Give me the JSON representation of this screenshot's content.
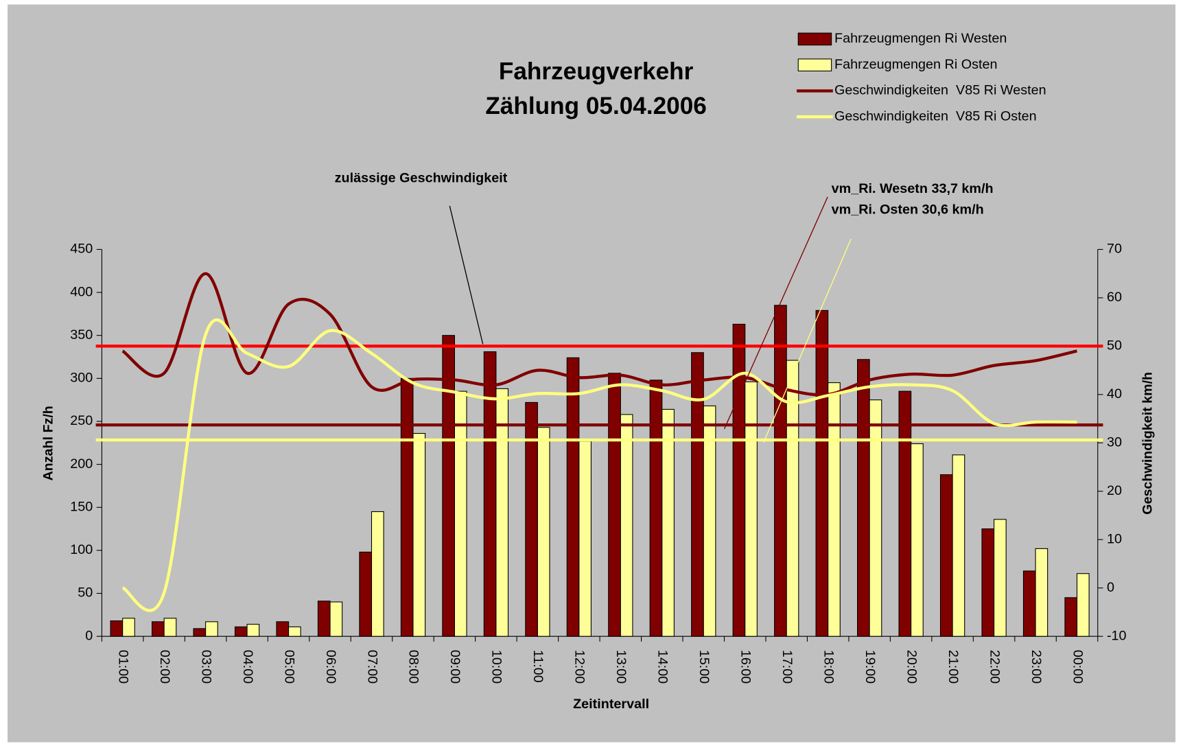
{
  "chart_data": {
    "type": "bar",
    "title": [
      "Fahrzeugverkehr",
      "Zählung 05.04.2006"
    ],
    "categories": [
      "01:00",
      "02:00",
      "03:00",
      "04:00",
      "05:00",
      "06:00",
      "07:00",
      "08:00",
      "09:00",
      "10:00",
      "11:00",
      "12:00",
      "13:00",
      "14:00",
      "15:00",
      "16:00",
      "17:00",
      "18:00",
      "19:00",
      "20:00",
      "21:00",
      "22:00",
      "23:00",
      "00:00"
    ],
    "series": [
      {
        "name": "Fahrzeugmengen Ri Westen",
        "type": "bar",
        "color": "#800000",
        "values": [
          18,
          17,
          9,
          11,
          17,
          41,
          98,
          300,
          350,
          331,
          272,
          324,
          306,
          298,
          330,
          363,
          385,
          379,
          322,
          285,
          188,
          125,
          76,
          45
        ]
      },
      {
        "name": "Fahrzeugmengen Ri Osten",
        "type": "bar",
        "color": "#ffff99",
        "values": [
          21,
          21,
          17,
          14,
          11,
          40,
          145,
          236,
          285,
          288,
          243,
          227,
          258,
          264,
          268,
          296,
          321,
          295,
          275,
          224,
          211,
          136,
          102,
          73
        ]
      },
      {
        "name": "Geschwindigkeiten  V85 Ri Westen",
        "type": "line",
        "axis": "y2",
        "color": "#800000",
        "values": [
          49,
          44.4,
          65,
          44.4,
          58.7,
          56.6,
          41.6,
          43.1,
          43,
          42,
          45,
          43.5,
          44,
          42,
          43,
          43.5,
          41,
          40,
          43,
          44.2,
          44,
          46,
          47,
          49
        ]
      },
      {
        "name": "Geschwindigkeiten  V85 Ri Osten",
        "type": "line",
        "axis": "y2",
        "color": "#ffff80",
        "values": [
          0,
          -1,
          52.4,
          48.5,
          45.8,
          53.2,
          48.5,
          42.4,
          40.5,
          39.1,
          40.2,
          40.2,
          42,
          40.8,
          39,
          44.4,
          38.5,
          39.8,
          41.6,
          42,
          40.8,
          34,
          34.3,
          34.3
        ]
      }
    ],
    "reference_lines": [
      {
        "value": 50,
        "axis": "y2",
        "color": "#ff0000"
      },
      {
        "value": 33.7,
        "axis": "y2",
        "color": "#800000"
      },
      {
        "value": 30.6,
        "axis": "y2",
        "color": "#ffff80"
      }
    ],
    "annotations": [
      {
        "text": "zulässige Geschwindigkeit",
        "color": "#ff0000"
      },
      {
        "text": "vm_Ri. Wesetn 33,7 km/h",
        "color": "#800000"
      },
      {
        "text": "vm_Ri. Osten 30,6 km/h",
        "color": "#ffff80"
      }
    ],
    "xlabel": "Zeitintervall",
    "ylabel": "Anzahl Fz/h",
    "y2label": "Geschwindigkeit km/h",
    "ylim": [
      0,
      450
    ],
    "yticks": [
      0,
      50,
      100,
      150,
      200,
      250,
      300,
      350,
      400,
      450
    ],
    "y2lim": [
      -10,
      70
    ],
    "y2ticks": [
      -10,
      0,
      10,
      20,
      30,
      40,
      50,
      60,
      70
    ],
    "legend": "upper right"
  }
}
